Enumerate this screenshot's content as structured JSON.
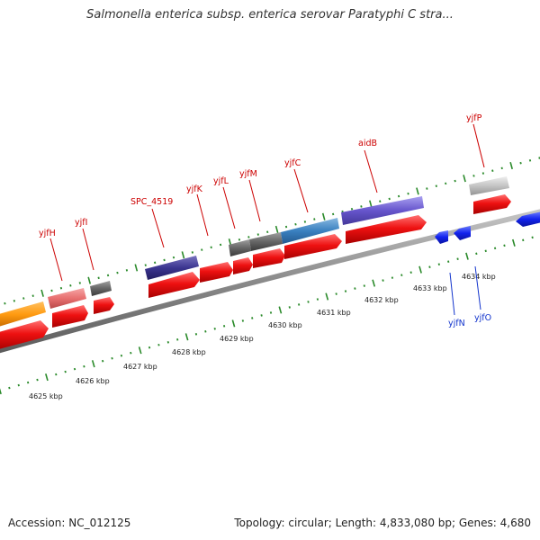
{
  "title": "Salmonella enterica subsp. enterica serovar Paratyphi C stra...",
  "footer": {
    "accession": "Accession: NC_012125",
    "summary": "Topology: circular; Length: 4,833,080 bp; Genes: 4,680"
  },
  "scale_labels": [
    "4625 kbp",
    "4626 kbp",
    "4627 kbp",
    "4628 kbp",
    "4629 kbp",
    "4630 kbp",
    "4631 kbp",
    "4632 kbp",
    "4633 kbp",
    "4634 kbp"
  ],
  "gene_labels": {
    "yjfH": "yjfH",
    "yjfI": "yjfI",
    "SPC_4519": "SPC_4519",
    "yjfK": "yjfK",
    "yjfL": "yjfL",
    "yjfM": "yjfM",
    "yjfC": "yjfC",
    "aidB": "aidB",
    "yjfP": "yjfP",
    "yjfN": "yjfN",
    "yjfO": "yjfO"
  },
  "colors": {
    "cds_forward": "#ee1111",
    "cds_reverse": "#1122ee",
    "label_forward": "#cc0000",
    "label_reverse": "#1133cc",
    "tick": "#2a8a2a",
    "backbone": "#8a8a8a"
  }
}
